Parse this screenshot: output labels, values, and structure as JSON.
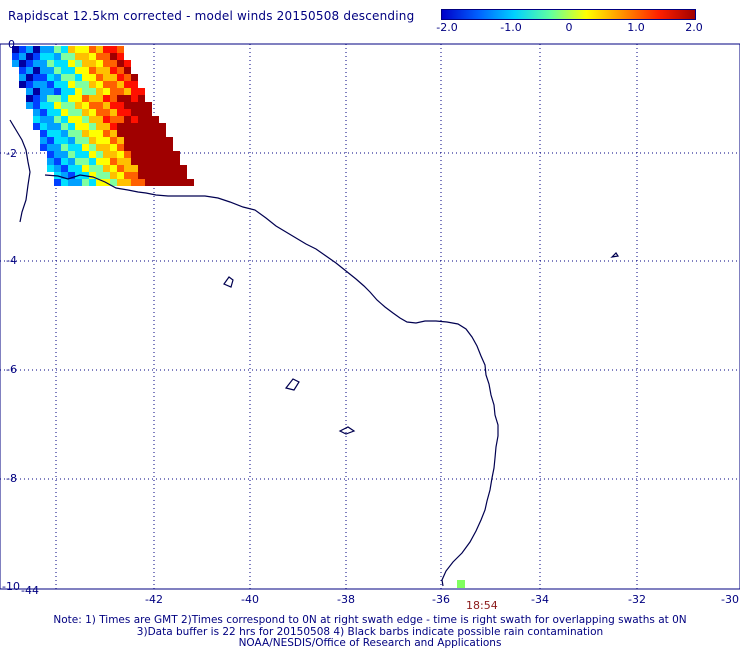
{
  "title": "Rapidscat 12.5km corrected - model winds 20150508 descending",
  "colorbar": {
    "labels": [
      "-2.0",
      "-1.0",
      "0",
      "1.0",
      "2.0"
    ],
    "colors": [
      "#0000c8",
      "#0060ff",
      "#00d0ff",
      "#60ffa0",
      "#ffff00",
      "#ff9000",
      "#ff2000",
      "#a00000"
    ]
  },
  "axes": {
    "x_ticks": [
      "-44",
      "-42",
      "-40",
      "-38",
      "-36",
      "-34",
      "-32",
      "-30"
    ],
    "y_ticks": [
      "0",
      "-2",
      "-4",
      "-6",
      "-8",
      "-10"
    ],
    "lon_range": [
      -45,
      -30
    ],
    "lat_range": [
      -10,
      0
    ],
    "grid": true
  },
  "time_label": "18:54",
  "notes": [
    "Note: 1) Times are GMT 2)Times correspond to 0N at right swath edge - time is right swath for overlapping swaths at 0N",
    "3)Data buffer is 22 hrs for 20150508 4) Black barbs indicate possible rain contamination",
    "NOAA/NESDIS/Office of Research and Applications"
  ],
  "colors": {
    "axis": "#000080",
    "coast": "#000050",
    "time": "#8b1a1a"
  }
}
